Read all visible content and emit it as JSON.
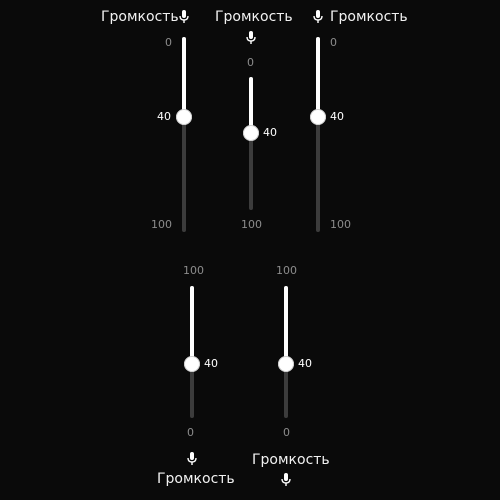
{
  "sliders": [
    {
      "label": "Громкость",
      "value": 40,
      "min_label": "0",
      "max_label": "100",
      "value_label": "40",
      "mic_icon": "microphone-icon"
    },
    {
      "label": "Громкость",
      "value": 40,
      "min_label": "0",
      "max_label": "100",
      "value_label": "40",
      "mic_icon": "microphone-icon"
    },
    {
      "label": "Громкость",
      "value": 40,
      "min_label": "0",
      "max_label": "100",
      "value_label": "40",
      "mic_icon": "microphone-icon"
    },
    {
      "label": "Громкость",
      "value": 40,
      "min_label": "0",
      "max_label": "100",
      "value_label": "40",
      "mic_icon": "microphone-icon"
    },
    {
      "label": "Громкость",
      "value": 40,
      "min_label": "0",
      "max_label": "100",
      "value_label": "40",
      "mic_icon": "microphone-icon"
    }
  ]
}
